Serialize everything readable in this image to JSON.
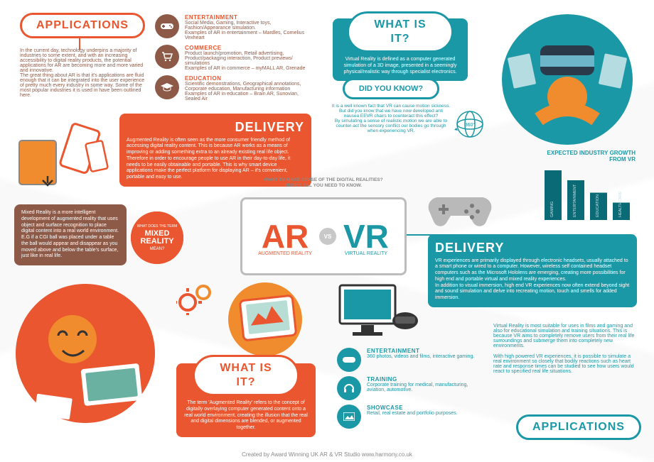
{
  "colors": {
    "orange": "#e9562f",
    "teal": "#1b98a6",
    "brown": "#8e5a48",
    "grey": "#bcbcbc"
  },
  "center": {
    "header": "WANT TO MAKE SENSE OF THE DIGITAL REALITIES? HERE'S ALL YOU NEED TO KNOW.",
    "ar": "AR",
    "ar_sub": "AUGMENTED REALITY",
    "vs": "VS",
    "vr": "VR",
    "vr_sub": "VIRTUAL REALITY"
  },
  "ar": {
    "applications_title": "APPLICATIONS",
    "applications_body": "In the current day, technology underpins a majority of industries to some extent, and with an increasing accessibility to digital reality products, the potential applications for AR are becoming more and more varied and innovative.\nThe great thing about AR is that it's applications are fluid enough that it can be integrated into the user experience of pretty much every industry in some way. Some of the most popular industries it is used in have been outlined here.",
    "cats": [
      {
        "title": "ENTERTAINMENT",
        "body": "Social Media, Gaming, Interactive toys, Fashion/Appearance simulation.\nExamples of AR in entertainment – Mardles, Cornelius Vexheart"
      },
      {
        "title": "COMMERCE",
        "body": "Product launch/promotion, Retail advertising, Product/packaging interaction, Product previews/ simulations\nExamples of AR in commerce – myMALL AR, Grenade"
      },
      {
        "title": "EDUCATION",
        "body": "Scientific demonstrations, Geographical annotations, Corporate education, Manufacturing information\nExamples of AR in education – Brain AR, Sunovian, Sealed Air"
      }
    ],
    "delivery_title": "DELIVERY",
    "delivery_body": "Augmented Reality is often seen as the more consumer friendly method of accessing digital reality content. This is because AR works as a means of improving or adding something extra to an already existing real life object. Therefore in order to encourage people to use AR in their day-to-day life, it needs to be easily obtainable and portable. This is why smart device applications make the perfect platform for displaying AR – it's convenient, portable and easy to use.",
    "mixed_body": "Mixed Reality is a more intelligent development of augmented reality that uses object and surface recognition to place digital content into a real world environment. E.G if a CGI ball was placed under a table the ball would appear and disappear as you moved above and below the table's surface, just like in real life.",
    "badge_pre": "WHAT DOES THE TERM",
    "badge_main": "MIXED REALITY",
    "badge_post": "MEAN?",
    "whatisit_title": "WHAT IS IT?",
    "whatisit_body": "The term 'Augmented Reality' refers to the concept of digitally overlaying computer generated content onto a real world environment, creating the illusion that the real and digital dimensions are blended, or augmented together."
  },
  "vr": {
    "whatisit_title": "WHAT IS IT?",
    "whatisit_body": "Virtual Reality is defined as a computer generated simulation of a 3D image, presented in a seemingly physical/realistic way through specialist electronics.",
    "didyouknow_title": "DID YOU KNOW?",
    "didyouknow_body": "It is a well known fact that VR can cause motion sickness. But did you know that we have now developed anti nausea EEVR chairs to counteract this effect?\nBy simulating a sense of realistic motion we are able to counter-act the sensory conflict our bodies go through when experiencing VR.",
    "chart_title": "EXPECTED INDUSTRY GROWTH FROM VR",
    "chart_labels": [
      "GAMING",
      "ENTERTAINMENT",
      "EDUCATION",
      "HEALTHCARE"
    ],
    "chart_values": [
      100,
      80,
      55,
      35
    ],
    "chart_color": "#0a6b77",
    "delivery_title": "DELIVERY",
    "delivery_body": "VR experiences are primarily displayed through electronic headsets, usually attached to a smart phone or wired to a computer. However, wireless self contained headset computers such as the Microsoft Hololens are emerging, creating more possibilities for high end and portable virtual and mixed reality experiences.\nIn addition to visual immersion, high end VR experiences now often extend beyond sight and sound simulation and delve into recreating motion, touch and smells for added immersion.",
    "cats": [
      {
        "title": "ENTERTAINMENT",
        "body": "360 photos, videos and films, interactive gaming.",
        "side": "Virtual Reality is most suitable for uses in films and gaming and also for educational simulation and training situations. This is because VR aims to completely remove users from their real life surroundings and submerge them into completely new environments."
      },
      {
        "title": "TRAINING",
        "body": "Corporate training for medical, manufacturing, aviation, automotive.",
        "side": "With high powered VR experiences, it is possible to simulate a real environment so closely that bodily reactions such as heart rate and response times can be studied to see how users would react to specified real life situations."
      },
      {
        "title": "SHOWCASE",
        "body": "Retail, real estate and portfolio purposes.",
        "side": ""
      }
    ],
    "applications_title": "APPLICATIONS"
  },
  "footer": "Created by Award Winning UK AR & VR Studio www.harmony.co.uk"
}
